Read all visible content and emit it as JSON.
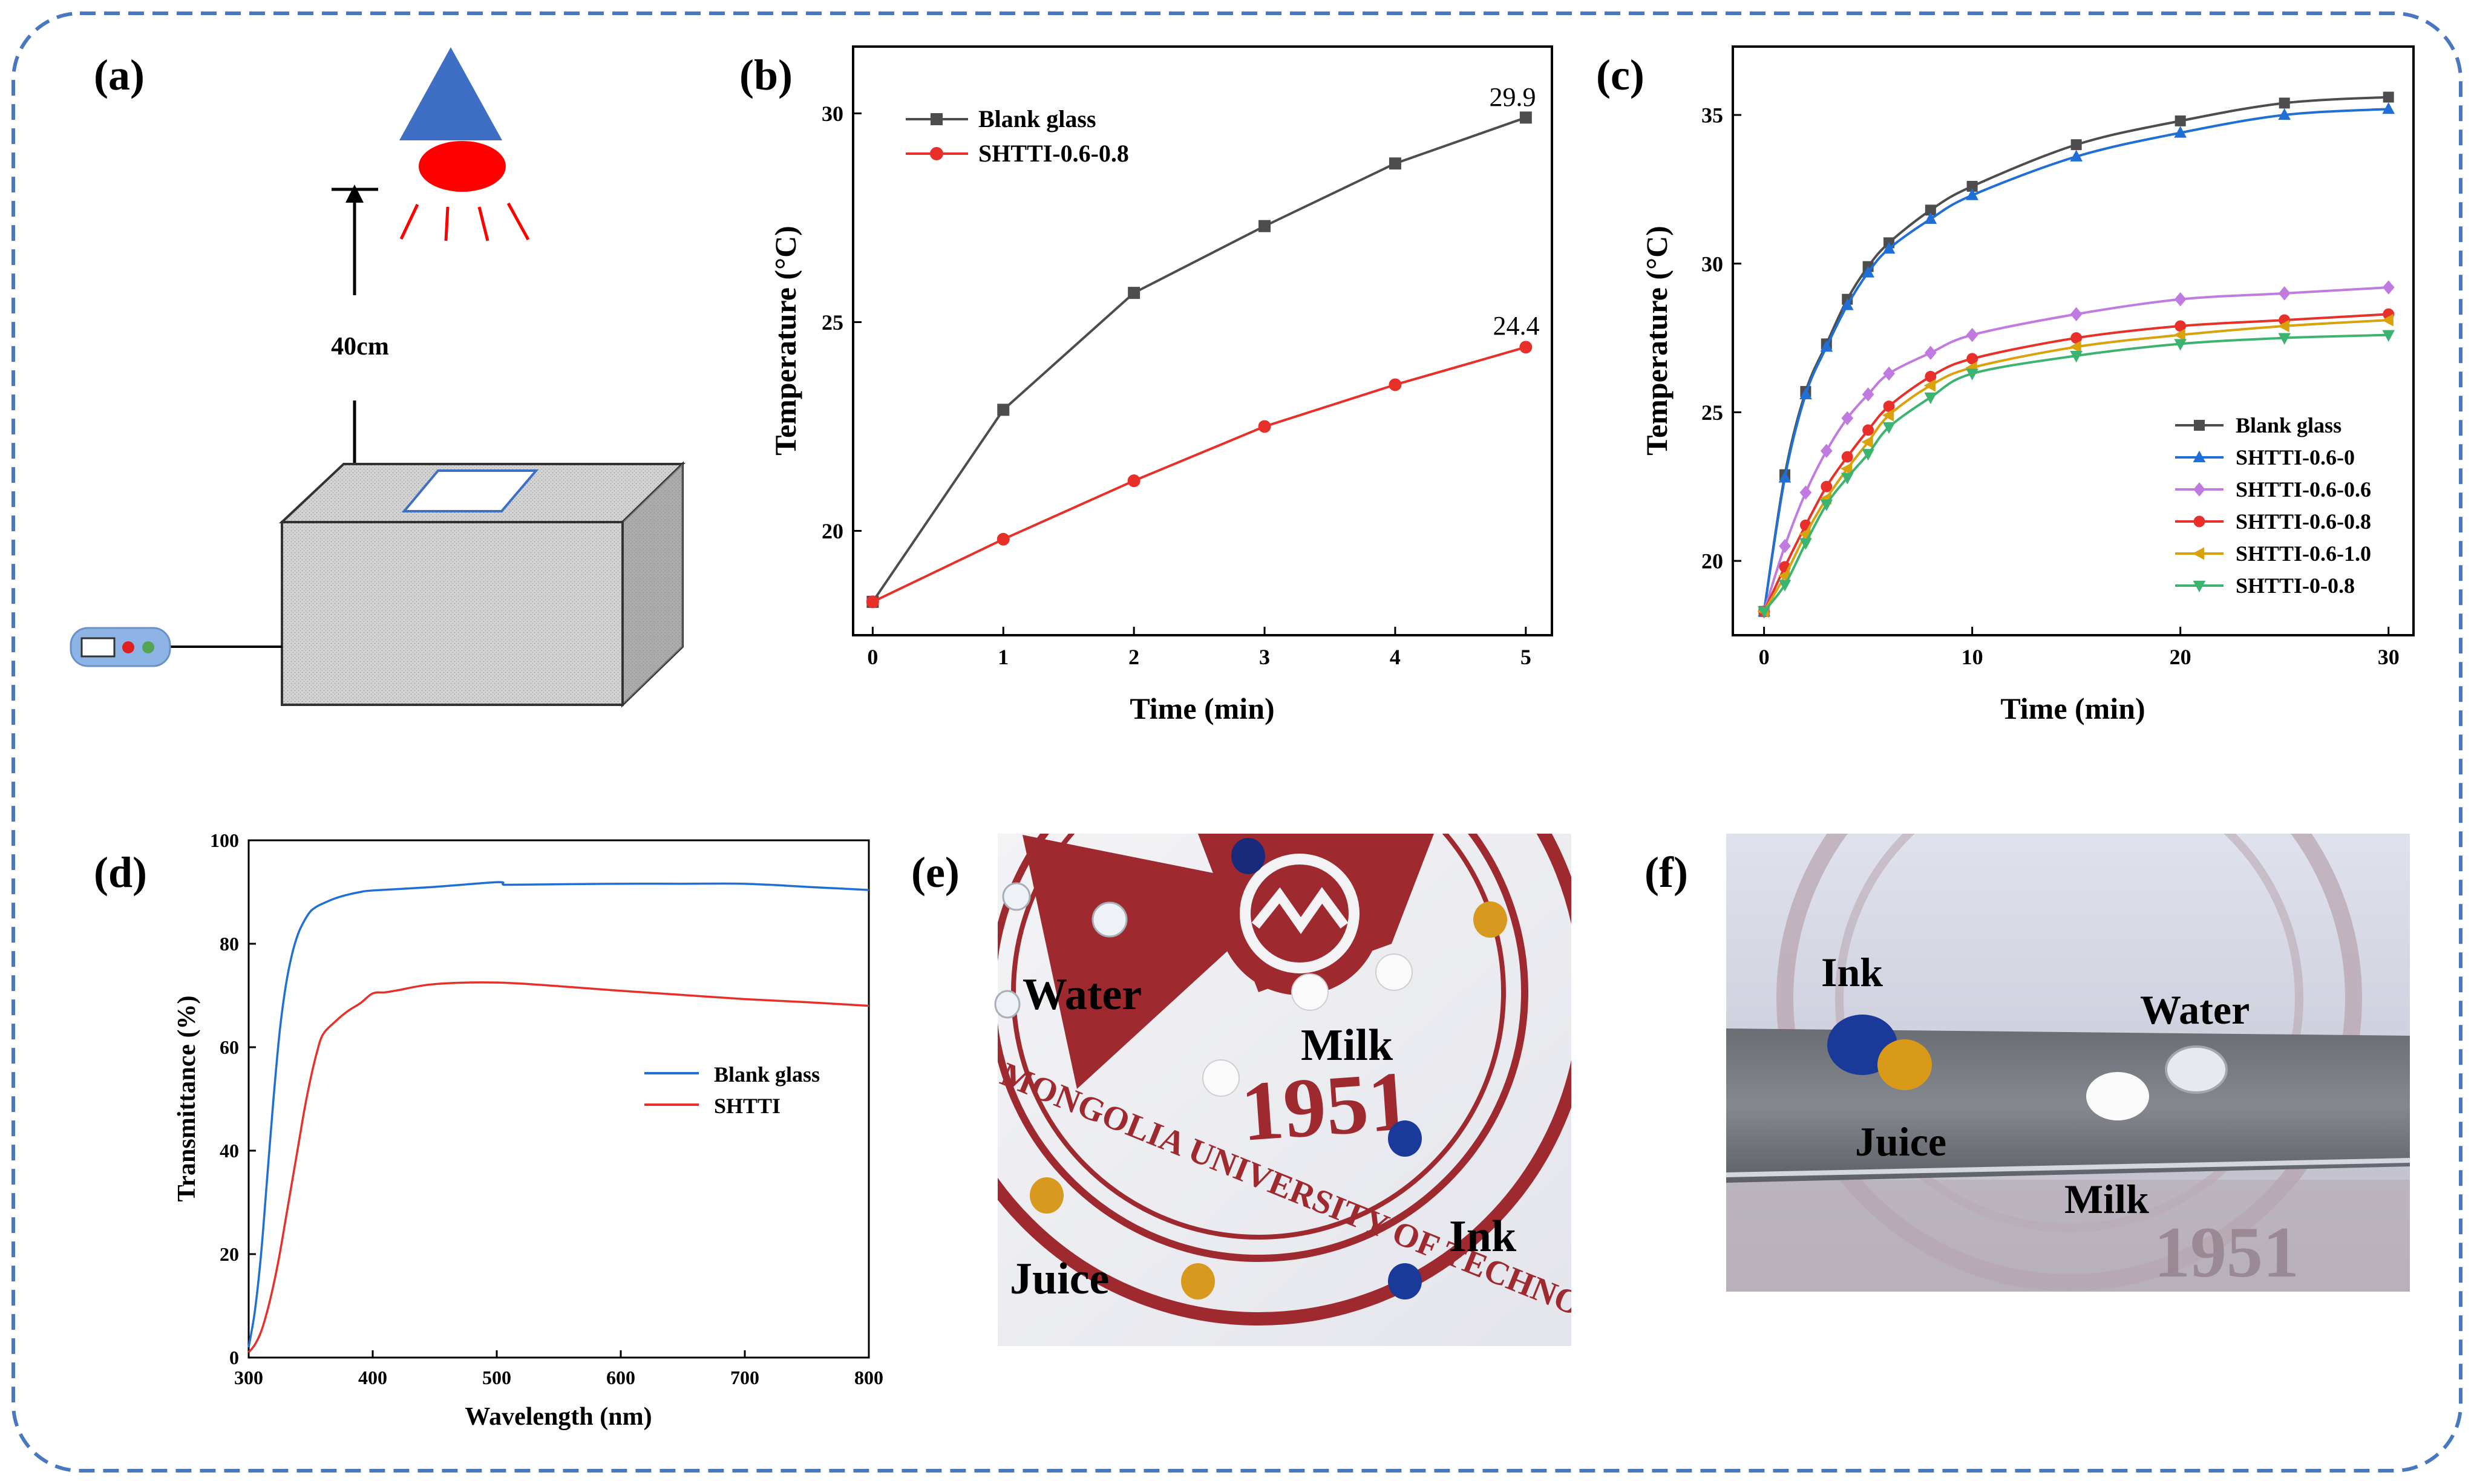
{
  "panels": {
    "a": {
      "label": "(a)",
      "distance_label": "40cm"
    },
    "e": {
      "label": "(e)",
      "photo_labels": [
        "Water",
        "Milk",
        "Juice",
        "Ink"
      ],
      "logo_year": "1951",
      "logo_text": "MONGOLIA UNIVERSITY OF TECHNOLOGY"
    },
    "f": {
      "label": "(f)",
      "photo_labels": [
        "Ink",
        "Water",
        "Juice",
        "Milk"
      ],
      "logo_year": "1951"
    }
  },
  "colors": {
    "frame": "#4a78c0",
    "blank_glass": "#4d4d4d",
    "shtti_red": "#e8302a",
    "curve_blue": "#1f6fd6",
    "lamp_blue": "#3f6fc4",
    "lamp_red": "#ff0000",
    "photo_red": "#9e2a30"
  },
  "chart_data": [
    {
      "id": "b",
      "label": "(b)",
      "type": "line",
      "xlabel": "Time (min)",
      "ylabel": "Temperature (°C)",
      "xlim": [
        -0.15,
        5.2
      ],
      "ylim": [
        17.5,
        31.6
      ],
      "xticks": [
        0,
        1,
        2,
        3,
        4,
        5
      ],
      "yticks": [
        20,
        25,
        30
      ],
      "legend_position": "top-left",
      "series": [
        {
          "name": "Blank glass",
          "marker": "square",
          "color": "#4d4d4d",
          "x": [
            0,
            1,
            2,
            3,
            4,
            5
          ],
          "y": [
            18.3,
            22.9,
            25.7,
            27.3,
            28.8,
            29.9
          ]
        },
        {
          "name": "SHTTI-0.6-0.8",
          "marker": "circle",
          "color": "#e8302a",
          "x": [
            0,
            1,
            2,
            3,
            4,
            5
          ],
          "y": [
            18.3,
            19.8,
            21.2,
            22.5,
            23.5,
            24.4
          ]
        }
      ],
      "annotations": [
        {
          "text": "29.9",
          "x": 5,
          "y": 29.9
        },
        {
          "text": "24.4",
          "x": 5,
          "y": 24.4
        }
      ]
    },
    {
      "id": "c",
      "label": "(c)",
      "type": "line",
      "xlabel": "Time (min)",
      "ylabel": "Temperature (°C)",
      "xlim": [
        -1.5,
        31.2
      ],
      "ylim": [
        17.5,
        37.3
      ],
      "xticks": [
        0,
        10,
        20,
        30
      ],
      "yticks": [
        20,
        25,
        30,
        35
      ],
      "legend_position": "bottom-right",
      "series": [
        {
          "name": "Blank glass",
          "marker": "square",
          "color": "#4d4d4d",
          "x": [
            0,
            1,
            2,
            3,
            4,
            5,
            6,
            8,
            10,
            15,
            20,
            25,
            30
          ],
          "y": [
            18.3,
            22.9,
            25.7,
            27.3,
            28.8,
            29.9,
            30.7,
            31.8,
            32.6,
            34.0,
            34.8,
            35.4,
            35.6
          ]
        },
        {
          "name": "SHTTI-0.6-0",
          "marker": "triangle-up",
          "color": "#1f6fd6",
          "x": [
            0,
            1,
            2,
            3,
            4,
            5,
            6,
            8,
            10,
            15,
            20,
            25,
            30
          ],
          "y": [
            18.3,
            22.8,
            25.6,
            27.2,
            28.6,
            29.7,
            30.5,
            31.5,
            32.3,
            33.6,
            34.4,
            35.0,
            35.2
          ]
        },
        {
          "name": "SHTTI-0.6-0.6",
          "marker": "diamond",
          "color": "#c07be0",
          "x": [
            0,
            1,
            2,
            3,
            4,
            5,
            6,
            8,
            10,
            15,
            20,
            25,
            30
          ],
          "y": [
            18.3,
            20.5,
            22.3,
            23.7,
            24.8,
            25.6,
            26.3,
            27.0,
            27.6,
            28.3,
            28.8,
            29.0,
            29.2
          ]
        },
        {
          "name": "SHTTI-0.6-0.8",
          "marker": "circle",
          "color": "#e8302a",
          "x": [
            0,
            1,
            2,
            3,
            4,
            5,
            6,
            8,
            10,
            15,
            20,
            25,
            30
          ],
          "y": [
            18.3,
            19.8,
            21.2,
            22.5,
            23.5,
            24.4,
            25.2,
            26.2,
            26.8,
            27.5,
            27.9,
            28.1,
            28.3
          ]
        },
        {
          "name": "SHTTI-0.6-1.0",
          "marker": "triangle-left",
          "color": "#d9a10a",
          "x": [
            0,
            1,
            2,
            3,
            4,
            5,
            6,
            8,
            10,
            15,
            20,
            25,
            30
          ],
          "y": [
            18.3,
            19.5,
            20.9,
            22.1,
            23.1,
            24.0,
            24.9,
            25.9,
            26.5,
            27.2,
            27.6,
            27.9,
            28.1
          ]
        },
        {
          "name": "SHTTI-0-0.8",
          "marker": "triangle-down",
          "color": "#3cb371",
          "x": [
            0,
            1,
            2,
            3,
            4,
            5,
            6,
            8,
            10,
            15,
            20,
            25,
            30
          ],
          "y": [
            18.3,
            19.2,
            20.6,
            21.9,
            22.8,
            23.6,
            24.5,
            25.5,
            26.3,
            26.9,
            27.3,
            27.5,
            27.6
          ]
        }
      ]
    },
    {
      "id": "d",
      "label": "(d)",
      "type": "line",
      "xlabel": "Wavelength (nm)",
      "ylabel": "Transmittance (%)",
      "xlim": [
        300,
        800
      ],
      "ylim": [
        0,
        100
      ],
      "xticks": [
        300,
        400,
        500,
        600,
        700,
        800
      ],
      "yticks": [
        0,
        20,
        40,
        60,
        80,
        100
      ],
      "legend_position": "center-right",
      "series": [
        {
          "name": "Blank glass",
          "color": "#1f6fd6",
          "x": [
            300,
            305,
            310,
            315,
            320,
            325,
            330,
            335,
            340,
            345,
            350,
            355,
            360,
            370,
            380,
            390,
            400,
            450,
            500,
            505,
            510,
            550,
            600,
            650,
            700,
            750,
            800
          ],
          "y": [
            2,
            9,
            20,
            35,
            50,
            63,
            72,
            78,
            82,
            84.5,
            86.3,
            87.2,
            87.8,
            88.8,
            89.5,
            90.0,
            90.3,
            91.0,
            91.9,
            91.5,
            91.4,
            91.5,
            91.6,
            91.6,
            91.6,
            91.0,
            90.4
          ]
        },
        {
          "name": "SHTTI",
          "color": "#e8302a",
          "x": [
            300,
            305,
            310,
            315,
            320,
            325,
            330,
            335,
            340,
            345,
            350,
            355,
            360,
            370,
            380,
            390,
            400,
            410,
            420,
            450,
            500,
            550,
            600,
            650,
            700,
            750,
            800
          ],
          "y": [
            1,
            2.5,
            5,
            9,
            14,
            20,
            27,
            34,
            41,
            48,
            54,
            59,
            62.5,
            65,
            67,
            68.5,
            70.4,
            70.6,
            71.0,
            72.2,
            72.5,
            71.8,
            70.9,
            70.1,
            69.3,
            68.7,
            68.0
          ]
        }
      ]
    }
  ]
}
